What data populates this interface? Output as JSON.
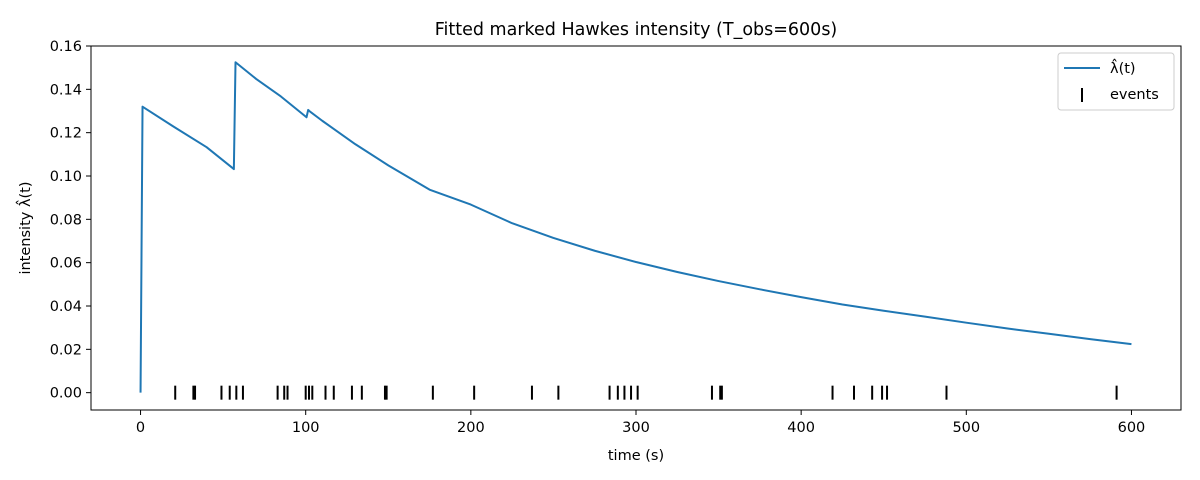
{
  "chart_data": {
    "type": "line",
    "title": "Fitted marked Hawkes intensity (T_obs=600s)",
    "xlabel": "time (s)",
    "ylabel": "intensity λ̂(t)",
    "xlim": [
      -30,
      630
    ],
    "ylim": [
      -0.008,
      0.16
    ],
    "xticks": [
      0,
      100,
      200,
      300,
      400,
      500,
      600
    ],
    "yticks": [
      0.0,
      0.02,
      0.04,
      0.06,
      0.08,
      0.1,
      0.12,
      0.14,
      0.16
    ],
    "xtick_labels": [
      "0",
      "100",
      "200",
      "300",
      "400",
      "500",
      "600"
    ],
    "ytick_labels": [
      "0.00",
      "0.02",
      "0.04",
      "0.06",
      "0.08",
      "0.10",
      "0.12",
      "0.14",
      "0.16"
    ],
    "grid": false,
    "legend_position": "upper right",
    "series": [
      {
        "name": "λ̂(t)",
        "kind": "line",
        "color": "#1f77b4",
        "x": [
          0,
          1.2,
          20,
          40,
          56.5,
          57.5,
          70,
          85,
          100.5,
          101.5,
          102.5,
          110,
          130,
          150,
          175,
          200,
          225,
          250,
          275,
          300,
          325,
          350,
          375,
          400,
          425,
          450,
          475,
          500,
          525,
          550,
          575,
          600
        ],
        "y": [
          0.0,
          0.132,
          0.1228,
          0.1133,
          0.1032,
          0.1525,
          0.1448,
          0.1367,
          0.1271,
          0.1305,
          0.1298,
          0.1255,
          0.1147,
          0.1049,
          0.0937,
          0.0868,
          0.0782,
          0.0714,
          0.0655,
          0.0603,
          0.0557,
          0.0515,
          0.0477,
          0.0441,
          0.0407,
          0.0378,
          0.0351,
          0.0323,
          0.0296,
          0.0272,
          0.0247,
          0.0224
        ]
      },
      {
        "name": "events",
        "kind": "event_markers",
        "color": "#000000",
        "y": 0.0,
        "x": [
          21,
          32,
          33,
          49,
          54,
          58,
          62,
          83,
          87,
          89,
          100,
          102,
          104,
          112,
          117,
          128,
          134,
          148,
          149,
          177,
          202,
          237,
          253,
          284,
          289,
          293,
          297,
          301,
          346,
          351,
          352,
          419,
          432,
          443,
          449,
          452,
          488,
          591
        ]
      }
    ]
  }
}
